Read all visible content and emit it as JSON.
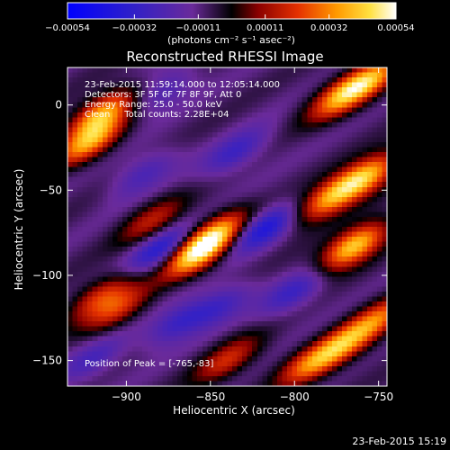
{
  "chart_data": {
    "type": "heatmap",
    "title": "Reconstructed RHESSI Image",
    "xlabel": "Heliocentric X (arcsec)",
    "ylabel": "Heliocentric Y (arcsec)",
    "xlim": [
      -935,
      -745
    ],
    "ylim": [
      -165,
      22
    ],
    "x_ticks": [
      -900,
      -850,
      -800,
      -750
    ],
    "y_ticks": [
      0,
      -50,
      -100,
      -150
    ],
    "x_tick_labels": [
      "−900",
      "−850",
      "−800",
      "−750"
    ],
    "y_tick_labels": [
      "0",
      "−50",
      "−100",
      "−150"
    ],
    "colorbar": {
      "min": -0.00054,
      "max": 0.00054,
      "ticks": [
        -0.00054,
        -0.00032,
        -0.00011,
        0.00011,
        0.00032,
        0.00054
      ],
      "tick_labels": [
        "−0.00054",
        "−0.00032",
        "−0.00011",
        "0.00011",
        "0.00032",
        "0.00054"
      ],
      "unit_label": "(photons cm⁻² s⁻¹ asec⁻²)"
    },
    "annotations": [
      "23-Feb-2015 11:59:14.000 to 12:05:14.000",
      "Detectors: 3F 5F 6F 7F 8F 9F, Att 0",
      "Energy Range: 25.0 - 50.0 keV",
      "Clean     Total counts: 2.28E+04"
    ],
    "peak_label": "Position of Peak = [-765,-83]",
    "peak": [
      -765,
      -83
    ],
    "colors": {
      "background": "#000000",
      "text": "#ffffff",
      "colormap_low": "#0000ff",
      "colormap_mid": "#000000",
      "colormap_high": "#ffffff"
    },
    "bright_sources": [
      {
        "x": -915,
        "y": -5,
        "amp": 0.00045
      },
      {
        "x": -922,
        "y": -22,
        "amp": 0.00042
      },
      {
        "x": -858,
        "y": -88,
        "amp": 0.00046
      },
      {
        "x": -848,
        "y": -76,
        "amp": 0.0004
      },
      {
        "x": -765,
        "y": -83,
        "amp": 0.00054
      },
      {
        "x": -758,
        "y": -42,
        "amp": 0.00048
      },
      {
        "x": -780,
        "y": -55,
        "amp": 0.0004
      },
      {
        "x": -772,
        "y": 5,
        "amp": 0.00038
      },
      {
        "x": -755,
        "y": 15,
        "amp": 0.00036
      },
      {
        "x": -915,
        "y": -112,
        "amp": 0.00028
      },
      {
        "x": -905,
        "y": -120,
        "amp": 0.00026
      },
      {
        "x": -790,
        "y": -152,
        "amp": 0.00034
      },
      {
        "x": -770,
        "y": -140,
        "amp": 0.00034
      },
      {
        "x": -750,
        "y": -125,
        "amp": 0.0003
      },
      {
        "x": -840,
        "y": -150,
        "amp": 0.00026
      },
      {
        "x": -885,
        "y": -68,
        "amp": 0.00022
      }
    ],
    "dark_sources": [
      {
        "x": -878,
        "y": 8,
        "amp": -0.00016
      },
      {
        "x": -890,
        "y": -40,
        "amp": -0.00016
      },
      {
        "x": -880,
        "y": -85,
        "amp": -0.00026
      },
      {
        "x": -818,
        "y": -72,
        "amp": -0.0003
      },
      {
        "x": -835,
        "y": -28,
        "amp": -0.0002
      },
      {
        "x": -800,
        "y": -110,
        "amp": -0.0002
      },
      {
        "x": -845,
        "y": -118,
        "amp": -0.00018
      },
      {
        "x": -870,
        "y": -128,
        "amp": -0.0002
      },
      {
        "x": -920,
        "y": -150,
        "amp": -0.00016
      }
    ]
  },
  "footer": {
    "timestamp": "23-Feb-2015 15:19"
  }
}
